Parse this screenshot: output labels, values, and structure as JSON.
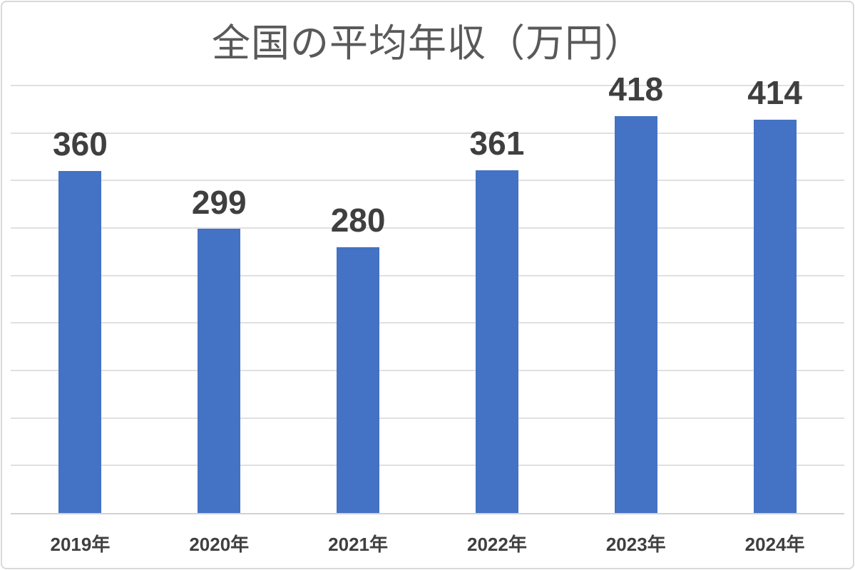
{
  "page": {
    "background": "#ffffff",
    "frame_border_color": "#d9d9d9"
  },
  "chart_data": {
    "type": "bar",
    "title": "全国の平均年収（万円）",
    "categories": [
      "2019年",
      "2020年",
      "2021年",
      "2022年",
      "2023年",
      "2024年"
    ],
    "values": [
      360,
      299,
      280,
      361,
      418,
      414
    ],
    "xlabel": "",
    "ylabel": "",
    "ylim": [
      0,
      450
    ],
    "gridline_interval": 50,
    "grid": "horizontal",
    "legend": "none",
    "data_labels_visible": true,
    "y_axis_tick_labels_visible": false,
    "bar_color": "#4472c4",
    "title_color": "#595959",
    "label_color": "#3f3f3f",
    "gridline_color": "#e0e0e0",
    "axis_line_color": "#d2d2d2"
  }
}
